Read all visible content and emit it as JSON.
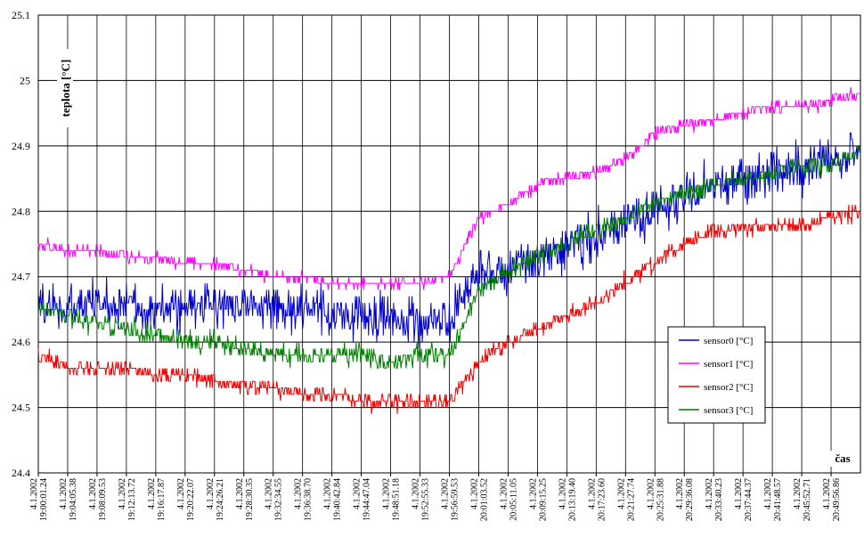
{
  "chart_data": {
    "type": "line",
    "ylabel": "teplota [°C]",
    "xlabel": "čas",
    "ylim": [
      24.4,
      25.1
    ],
    "yticks": [
      "24.4",
      "24.5",
      "24.6",
      "24.7",
      "24.8",
      "24.9",
      "25",
      "25.1"
    ],
    "grid": true,
    "legend_position": "right",
    "x_tick_labels": [
      [
        "4.1.2002",
        "19:00:01.24"
      ],
      [
        "4.1.2002",
        "19:04:05.38"
      ],
      [
        "4.1.2002",
        "19:08:09.53"
      ],
      [
        "4.1.2002",
        "19:12:13.72"
      ],
      [
        "4.1.2002",
        "19:16:17.87"
      ],
      [
        "4.1.2002",
        "19:20:22.07"
      ],
      [
        "4.1.2002",
        "19:24:26.21"
      ],
      [
        "4.1.2002",
        "19:28:30.35"
      ],
      [
        "4.1.2002",
        "19:32:34.55"
      ],
      [
        "4.1.2002",
        "19:36:38.70"
      ],
      [
        "4.1.2002",
        "19:40:42.84"
      ],
      [
        "4.1.2002",
        "19:44:47.04"
      ],
      [
        "4.1.2002",
        "19:48:51.18"
      ],
      [
        "4.1.2002",
        "19:52:55.33"
      ],
      [
        "4.1.2002",
        "19:56:59.53"
      ],
      [
        "4.1.2002",
        "20:01:03.52"
      ],
      [
        "4.1.2002",
        "20:05:11.05"
      ],
      [
        "4.1.2002",
        "20:09:15.25"
      ],
      [
        "4.1.2002",
        "20:13:19.40"
      ],
      [
        "4.1.2002",
        "20:17:23.60"
      ],
      [
        "4.1.2002",
        "20:21:27.74"
      ],
      [
        "4.1.2002",
        "20:25:31.88"
      ],
      [
        "4.1.2002",
        "20:29:36.08"
      ],
      [
        "4.1.2002",
        "20:33:40.23"
      ],
      [
        "4.1.2002",
        "20:37:44.37"
      ],
      [
        "4.1.2002",
        "20:41:48.57"
      ],
      [
        "4.1.2002",
        "20:45:52.71"
      ],
      [
        "4.1.2002",
        "20:49:56.86"
      ]
    ],
    "series": [
      {
        "name": "sensor0 [°C]",
        "color": "#0000cc",
        "noise": 0.035,
        "values": [
          24.66,
          24.65,
          24.66,
          24.66,
          24.65,
          24.65,
          24.66,
          24.66,
          24.65,
          24.65,
          24.64,
          24.64,
          24.64,
          24.63,
          24.63,
          24.7,
          24.71,
          24.73,
          24.75,
          24.76,
          24.78,
          24.8,
          24.82,
          24.84,
          24.85,
          24.86,
          24.87,
          24.87,
          24.89
        ]
      },
      {
        "name": "sensor1 [°C]",
        "color": "#ff00ff",
        "noise": 0.008,
        "values": [
          24.75,
          24.74,
          24.74,
          24.73,
          24.73,
          24.72,
          24.72,
          24.71,
          24.7,
          24.7,
          24.69,
          24.69,
          24.69,
          24.69,
          24.7,
          24.79,
          24.81,
          24.84,
          24.85,
          24.86,
          24.88,
          24.92,
          24.93,
          24.94,
          24.95,
          24.96,
          24.96,
          24.97,
          24.98
        ]
      },
      {
        "name": "sensor2 [°C]",
        "color": "#ee0000",
        "noise": 0.012,
        "values": [
          24.58,
          24.56,
          24.56,
          24.56,
          24.55,
          24.55,
          24.54,
          24.53,
          24.53,
          24.52,
          24.52,
          24.51,
          24.51,
          24.51,
          24.51,
          24.57,
          24.6,
          24.62,
          24.64,
          24.66,
          24.69,
          24.72,
          24.75,
          24.77,
          24.77,
          24.78,
          24.78,
          24.79,
          24.8
        ]
      },
      {
        "name": "sensor3 [°C]",
        "color": "#008000",
        "noise": 0.015,
        "values": [
          24.65,
          24.64,
          24.63,
          24.62,
          24.61,
          24.6,
          24.6,
          24.59,
          24.58,
          24.58,
          24.58,
          24.58,
          24.57,
          24.58,
          24.58,
          24.68,
          24.71,
          24.73,
          24.75,
          24.77,
          24.79,
          24.81,
          24.83,
          24.84,
          24.85,
          24.86,
          24.87,
          24.87,
          24.89
        ]
      }
    ]
  }
}
